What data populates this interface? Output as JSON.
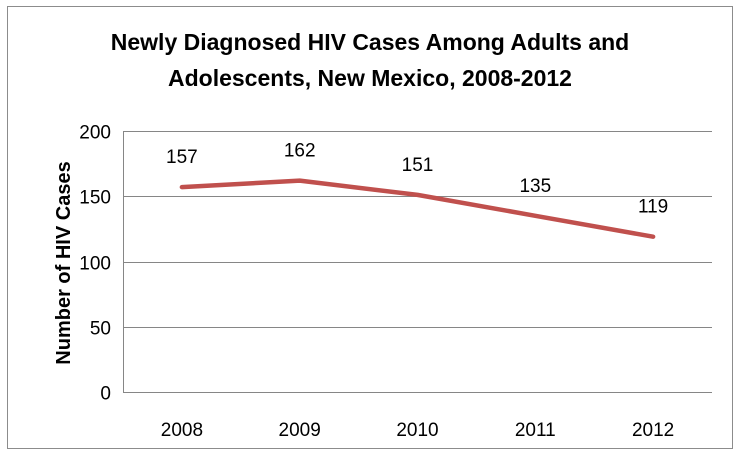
{
  "chart_data": {
    "type": "line",
    "title_lines": [
      "Newly Diagnosed HIV Cases Among Adults and",
      "Adolescents, New Mexico, 2008-2012"
    ],
    "xlabel": "",
    "ylabel": "Number of HIV Cases",
    "categories": [
      "2008",
      "2009",
      "2010",
      "2011",
      "2012"
    ],
    "series": [
      {
        "values": [
          157,
          162,
          151,
          135,
          119
        ],
        "color": "#c0504d"
      }
    ],
    "data_labels": [
      "157",
      "162",
      "151",
      "135",
      "119"
    ],
    "ylim": [
      0,
      200
    ],
    "yticks": [
      0,
      50,
      100,
      150,
      200
    ],
    "ytick_labels": [
      "0",
      "50",
      "100",
      "150",
      "200"
    ],
    "grid": true,
    "grid_color": "#868686",
    "legend": "none"
  }
}
